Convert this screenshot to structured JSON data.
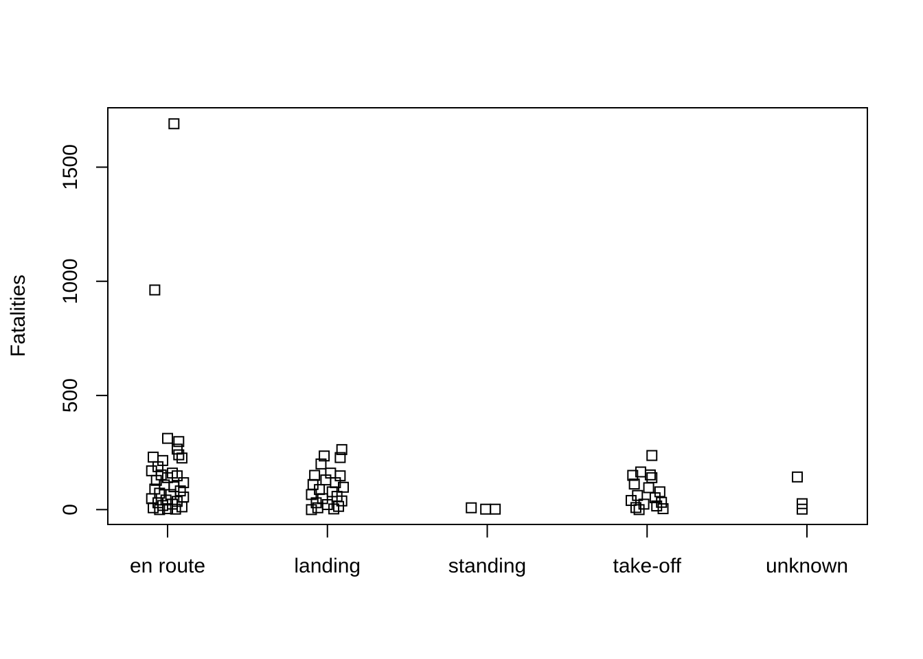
{
  "chart_data": {
    "type": "scatter",
    "title": "",
    "xlabel": "",
    "ylabel": "Fatalities",
    "categories": [
      "en route",
      "landing",
      "standing",
      "take-off",
      "unknown"
    ],
    "yticks": [
      0,
      500,
      1000,
      1500
    ],
    "ylim": [
      -65,
      1760
    ],
    "grid": false,
    "legend": "none",
    "marker": "open-square",
    "points": [
      {
        "category": "en route",
        "offset": 0.04,
        "y": 1690
      },
      {
        "category": "en route",
        "offset": -0.08,
        "y": 962
      },
      {
        "category": "en route",
        "offset": 0.0,
        "y": 312
      },
      {
        "category": "en route",
        "offset": 0.07,
        "y": 298
      },
      {
        "category": "en route",
        "offset": 0.06,
        "y": 265
      },
      {
        "category": "en route",
        "offset": 0.07,
        "y": 240
      },
      {
        "category": "en route",
        "offset": -0.09,
        "y": 230
      },
      {
        "category": "en route",
        "offset": 0.09,
        "y": 226
      },
      {
        "category": "en route",
        "offset": -0.03,
        "y": 215
      },
      {
        "category": "en route",
        "offset": -0.06,
        "y": 188
      },
      {
        "category": "en route",
        "offset": -0.1,
        "y": 170
      },
      {
        "category": "en route",
        "offset": 0.03,
        "y": 160
      },
      {
        "category": "en route",
        "offset": -0.04,
        "y": 152
      },
      {
        "category": "en route",
        "offset": 0.06,
        "y": 148
      },
      {
        "category": "en route",
        "offset": 0.0,
        "y": 140
      },
      {
        "category": "en route",
        "offset": -0.07,
        "y": 128
      },
      {
        "category": "en route",
        "offset": 0.1,
        "y": 118
      },
      {
        "category": "en route",
        "offset": -0.02,
        "y": 108
      },
      {
        "category": "en route",
        "offset": 0.04,
        "y": 100
      },
      {
        "category": "en route",
        "offset": -0.08,
        "y": 90
      },
      {
        "category": "en route",
        "offset": 0.08,
        "y": 82
      },
      {
        "category": "en route",
        "offset": -0.05,
        "y": 72
      },
      {
        "category": "en route",
        "offset": 0.02,
        "y": 66
      },
      {
        "category": "en route",
        "offset": 0.1,
        "y": 55
      },
      {
        "category": "en route",
        "offset": -0.1,
        "y": 48
      },
      {
        "category": "en route",
        "offset": -0.01,
        "y": 42
      },
      {
        "category": "en route",
        "offset": 0.06,
        "y": 36
      },
      {
        "category": "en route",
        "offset": -0.06,
        "y": 30
      },
      {
        "category": "en route",
        "offset": 0.03,
        "y": 24
      },
      {
        "category": "en route",
        "offset": -0.03,
        "y": 18
      },
      {
        "category": "en route",
        "offset": 0.09,
        "y": 12
      },
      {
        "category": "en route",
        "offset": -0.09,
        "y": 8
      },
      {
        "category": "en route",
        "offset": 0.0,
        "y": 4
      },
      {
        "category": "en route",
        "offset": 0.05,
        "y": 2
      },
      {
        "category": "en route",
        "offset": -0.05,
        "y": 0
      },
      {
        "category": "landing",
        "offset": 0.09,
        "y": 263
      },
      {
        "category": "landing",
        "offset": -0.02,
        "y": 235
      },
      {
        "category": "landing",
        "offset": 0.08,
        "y": 228
      },
      {
        "category": "landing",
        "offset": -0.04,
        "y": 200
      },
      {
        "category": "landing",
        "offset": 0.02,
        "y": 160
      },
      {
        "category": "landing",
        "offset": -0.08,
        "y": 150
      },
      {
        "category": "landing",
        "offset": 0.08,
        "y": 148
      },
      {
        "category": "landing",
        "offset": -0.01,
        "y": 130
      },
      {
        "category": "landing",
        "offset": 0.05,
        "y": 118
      },
      {
        "category": "landing",
        "offset": -0.09,
        "y": 110
      },
      {
        "category": "landing",
        "offset": 0.1,
        "y": 98
      },
      {
        "category": "landing",
        "offset": -0.05,
        "y": 88
      },
      {
        "category": "landing",
        "offset": 0.03,
        "y": 78
      },
      {
        "category": "landing",
        "offset": -0.1,
        "y": 66
      },
      {
        "category": "landing",
        "offset": 0.06,
        "y": 58
      },
      {
        "category": "landing",
        "offset": -0.03,
        "y": 48
      },
      {
        "category": "landing",
        "offset": 0.09,
        "y": 38
      },
      {
        "category": "landing",
        "offset": -0.07,
        "y": 30
      },
      {
        "category": "landing",
        "offset": 0.0,
        "y": 22
      },
      {
        "category": "landing",
        "offset": 0.07,
        "y": 14
      },
      {
        "category": "landing",
        "offset": -0.06,
        "y": 8
      },
      {
        "category": "landing",
        "offset": 0.04,
        "y": 3
      },
      {
        "category": "landing",
        "offset": -0.1,
        "y": 0
      },
      {
        "category": "standing",
        "offset": -0.1,
        "y": 8
      },
      {
        "category": "standing",
        "offset": -0.01,
        "y": 2
      },
      {
        "category": "standing",
        "offset": 0.05,
        "y": 2
      },
      {
        "category": "take-off",
        "offset": 0.03,
        "y": 237
      },
      {
        "category": "take-off",
        "offset": -0.04,
        "y": 165
      },
      {
        "category": "take-off",
        "offset": 0.02,
        "y": 152
      },
      {
        "category": "take-off",
        "offset": -0.09,
        "y": 150
      },
      {
        "category": "take-off",
        "offset": 0.03,
        "y": 140
      },
      {
        "category": "take-off",
        "offset": -0.08,
        "y": 112
      },
      {
        "category": "take-off",
        "offset": 0.01,
        "y": 96
      },
      {
        "category": "take-off",
        "offset": 0.08,
        "y": 78
      },
      {
        "category": "take-off",
        "offset": -0.06,
        "y": 62
      },
      {
        "category": "take-off",
        "offset": 0.05,
        "y": 52
      },
      {
        "category": "take-off",
        "offset": -0.1,
        "y": 40
      },
      {
        "category": "take-off",
        "offset": 0.09,
        "y": 32
      },
      {
        "category": "take-off",
        "offset": -0.02,
        "y": 24
      },
      {
        "category": "take-off",
        "offset": 0.06,
        "y": 16
      },
      {
        "category": "take-off",
        "offset": -0.07,
        "y": 9
      },
      {
        "category": "take-off",
        "offset": 0.1,
        "y": 4
      },
      {
        "category": "take-off",
        "offset": -0.05,
        "y": 0
      },
      {
        "category": "unknown",
        "offset": -0.06,
        "y": 143
      },
      {
        "category": "unknown",
        "offset": -0.03,
        "y": 26
      },
      {
        "category": "unknown",
        "offset": -0.03,
        "y": 2
      }
    ]
  }
}
